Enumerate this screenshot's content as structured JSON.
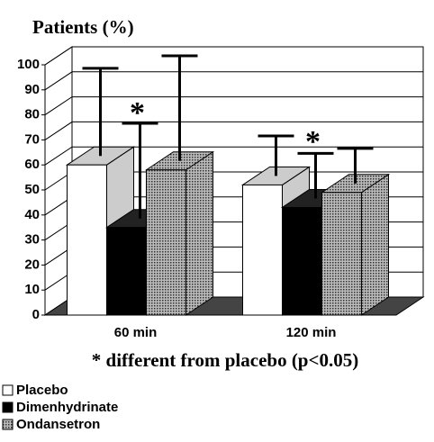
{
  "chart_data": {
    "type": "bar3d",
    "title": "Patients (%)",
    "note": "* different from placebo (p<0.05)",
    "categories": [
      "60 min",
      "120 min"
    ],
    "series": [
      {
        "name": "Placebo",
        "color": "#ffffff",
        "values": [
          60,
          52
        ],
        "errors": [
          35,
          16
        ]
      },
      {
        "name": "Dimenhydrinate",
        "color": "#000000",
        "values": [
          35,
          43
        ],
        "errors": [
          38,
          18
        ]
      },
      {
        "name": "Ondansetron",
        "color": "#999999",
        "values": [
          58,
          49
        ],
        "errors": [
          42,
          14
        ]
      }
    ],
    "annotations": [
      {
        "text": "*",
        "category": 0
      },
      {
        "text": "*",
        "category": 1
      }
    ],
    "ylim": [
      0,
      100
    ],
    "yticks": [
      0,
      10,
      20,
      30,
      40,
      50,
      60,
      70,
      80,
      90,
      100
    ],
    "grid": true
  }
}
